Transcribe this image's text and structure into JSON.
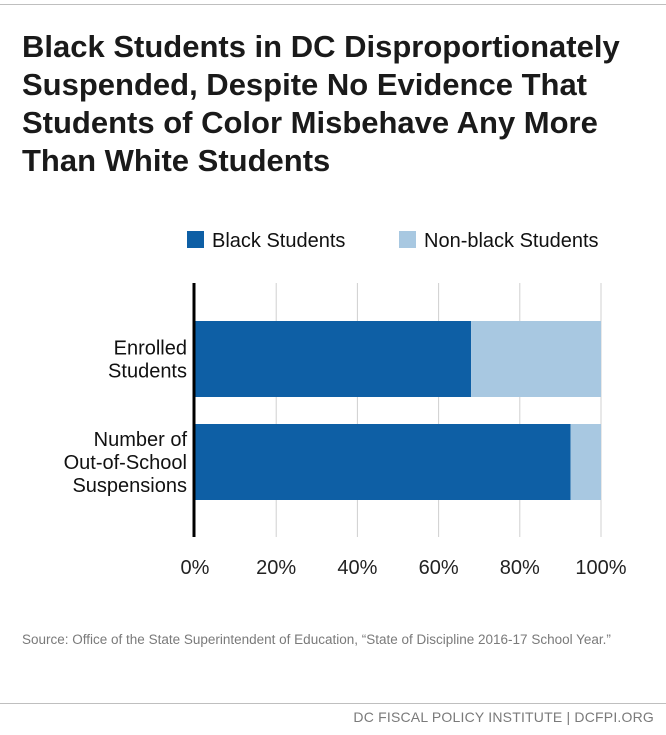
{
  "title": "Black Students in DC Disproportionately Suspended, Despite No Evidence That Students of Color Misbehave Any More Than White Students",
  "source": "Source: Office of the State Superintendent of Education, “State of Discipline 2016-17 School Year.”",
  "footer": "DC FISCAL POLICY INSTITUTE | DCFPI.ORG",
  "colors": {
    "black": "#0e5fa5",
    "nonblack": "#a8c8e1",
    "grid": "#d0d0d0",
    "axis": "#000000"
  },
  "chart_data": {
    "type": "bar",
    "orientation": "horizontal",
    "stacked": true,
    "categories": [
      [
        "Enrolled",
        "Students"
      ],
      [
        "Number of",
        "Out-of-School",
        "Suspensions"
      ]
    ],
    "series": [
      {
        "name": "Black Students",
        "color": "#0e5fa5",
        "values": [
          68,
          92.5
        ]
      },
      {
        "name": "Non-black Students",
        "color": "#a8c8e1",
        "values": [
          32,
          7.5
        ]
      }
    ],
    "xlim": [
      0,
      100
    ],
    "xticks": [
      0,
      20,
      40,
      60,
      80,
      100
    ],
    "xtick_labels": [
      "0%",
      "20%",
      "40%",
      "60%",
      "80%",
      "100%"
    ],
    "grid": true,
    "legend": "top-right"
  }
}
